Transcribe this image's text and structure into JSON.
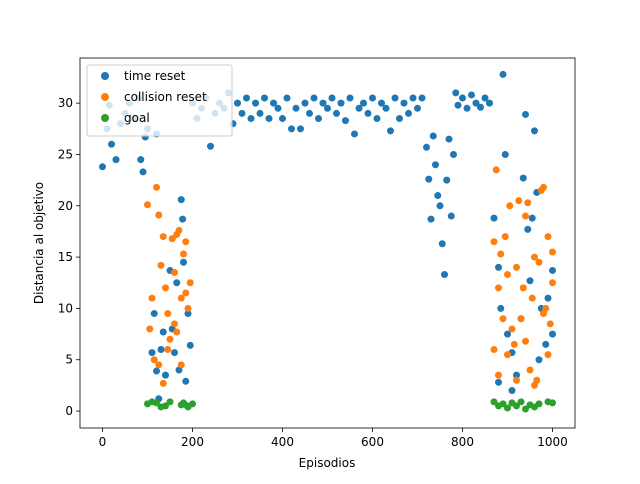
{
  "chart_data": {
    "type": "scatter",
    "xlabel": "Episodios",
    "ylabel": "Distancia al objetivo",
    "xlim": [
      -50,
      1050
    ],
    "ylim": [
      -1.65,
      34.4
    ],
    "xticks": [
      0,
      200,
      400,
      600,
      800,
      1000
    ],
    "yticks": [
      0,
      5,
      10,
      15,
      20,
      25,
      30
    ],
    "legend": "upper left",
    "series": [
      {
        "name": "time reset",
        "color": "#1f77b4",
        "x": [
          0,
          10,
          15,
          20,
          30,
          40,
          50,
          60,
          70,
          80,
          85,
          90,
          95,
          100,
          110,
          115,
          120,
          125,
          130,
          135,
          140,
          150,
          155,
          160,
          165,
          170,
          175,
          178,
          180,
          185,
          188,
          190,
          195,
          120,
          200,
          210,
          220,
          230,
          240,
          250,
          260,
          270,
          280,
          290,
          300,
          310,
          320,
          330,
          340,
          350,
          360,
          370,
          380,
          390,
          400,
          410,
          420,
          430,
          440,
          450,
          460,
          470,
          480,
          490,
          500,
          510,
          520,
          530,
          540,
          550,
          560,
          570,
          580,
          590,
          600,
          610,
          620,
          630,
          640,
          650,
          660,
          670,
          680,
          690,
          700,
          710,
          720,
          725,
          730,
          735,
          740,
          745,
          750,
          755,
          760,
          765,
          770,
          775,
          780,
          785,
          790,
          800,
          810,
          820,
          830,
          840,
          850,
          860,
          870,
          880,
          885,
          890,
          895,
          900,
          910,
          920,
          930,
          935,
          940,
          945,
          950,
          955,
          960,
          965,
          970,
          975,
          985,
          990,
          1000,
          1000,
          880,
          910
        ],
        "values": [
          23.8,
          27.5,
          29.8,
          26,
          24.5,
          28,
          29,
          30,
          28.5,
          30.5,
          24.5,
          23.3,
          26.7,
          27.5,
          5.7,
          9.5,
          3.9,
          1.2,
          6,
          7.7,
          3.5,
          13.7,
          8,
          5.7,
          12.5,
          4,
          20.6,
          18.7,
          14.5,
          2.9,
          0.5,
          9.5,
          6.4,
          27,
          30,
          28.5,
          29.5,
          30.5,
          25.8,
          29,
          30,
          29.5,
          31,
          28,
          30,
          29,
          30.5,
          28.5,
          30,
          29,
          30.5,
          28.5,
          30,
          29.5,
          28.5,
          30.5,
          27.5,
          29.5,
          27.5,
          30,
          29,
          30.5,
          28.5,
          30,
          29.5,
          30.5,
          29,
          30,
          28.3,
          30.5,
          27,
          29.5,
          30,
          29,
          30.5,
          28.5,
          30,
          29.5,
          27.3,
          30.5,
          28.5,
          30,
          29,
          30.5,
          29.5,
          30.5,
          25.7,
          22.6,
          18.7,
          26.8,
          24,
          21,
          20,
          16.3,
          13.3,
          22.5,
          26.5,
          19,
          25,
          31,
          29.8,
          30.5,
          29.5,
          30.8,
          30,
          29.6,
          30.5,
          30,
          18.8,
          14,
          10,
          32.8,
          25,
          7.5,
          5.7,
          3.5,
          9,
          22.7,
          28.9,
          17.7,
          12.7,
          18.8,
          27.3,
          21.3,
          5,
          10,
          6.5,
          11,
          13.7,
          7.5,
          2.8,
          2
        ]
      },
      {
        "name": "collision reset",
        "color": "#ff7f0e",
        "x": [
          100,
          105,
          110,
          115,
          120,
          125,
          130,
          135,
          140,
          145,
          150,
          155,
          160,
          165,
          170,
          175,
          180,
          185,
          190,
          195,
          125,
          135,
          145,
          165,
          175,
          160,
          185,
          870,
          875,
          880,
          885,
          890,
          895,
          900,
          905,
          910,
          915,
          920,
          925,
          930,
          935,
          940,
          945,
          950,
          955,
          960,
          965,
          970,
          975,
          980,
          985,
          990,
          995,
          1000,
          870,
          880,
          900,
          920,
          940,
          960,
          980,
          990,
          1000
        ],
        "values": [
          20.1,
          8,
          11,
          5,
          21.8,
          19.1,
          14.2,
          17,
          12,
          9.5,
          7,
          16.8,
          13.5,
          17.2,
          17.6,
          11,
          15.3,
          16.5,
          10,
          12.5,
          4.5,
          2.7,
          6,
          7.7,
          4.5,
          8.5,
          11.5,
          16.5,
          23.5,
          12,
          15.3,
          9,
          17,
          13.3,
          20,
          8,
          6.5,
          14,
          20.5,
          9,
          12,
          19,
          20.3,
          4,
          11,
          15,
          3,
          14.5,
          21.5,
          21.8,
          10,
          17,
          8.5,
          15.5,
          6,
          3.5,
          5.5,
          3,
          6.8,
          2.5,
          9.5,
          5.5,
          12.5
        ]
      },
      {
        "name": "goal",
        "color": "#2ca02c",
        "x": [
          100,
          110,
          120,
          130,
          140,
          150,
          175,
          180,
          190,
          200,
          870,
          880,
          890,
          900,
          910,
          920,
          930,
          940,
          950,
          960,
          970,
          990,
          1000
        ],
        "values": [
          0.7,
          0.9,
          0.8,
          0.4,
          0.5,
          0.9,
          0.6,
          0.8,
          0.4,
          0.7,
          0.9,
          0.5,
          0.7,
          0.3,
          0.8,
          0.5,
          0.9,
          0.2,
          0.6,
          0.4,
          0.7,
          0.9,
          0.8
        ]
      }
    ]
  }
}
